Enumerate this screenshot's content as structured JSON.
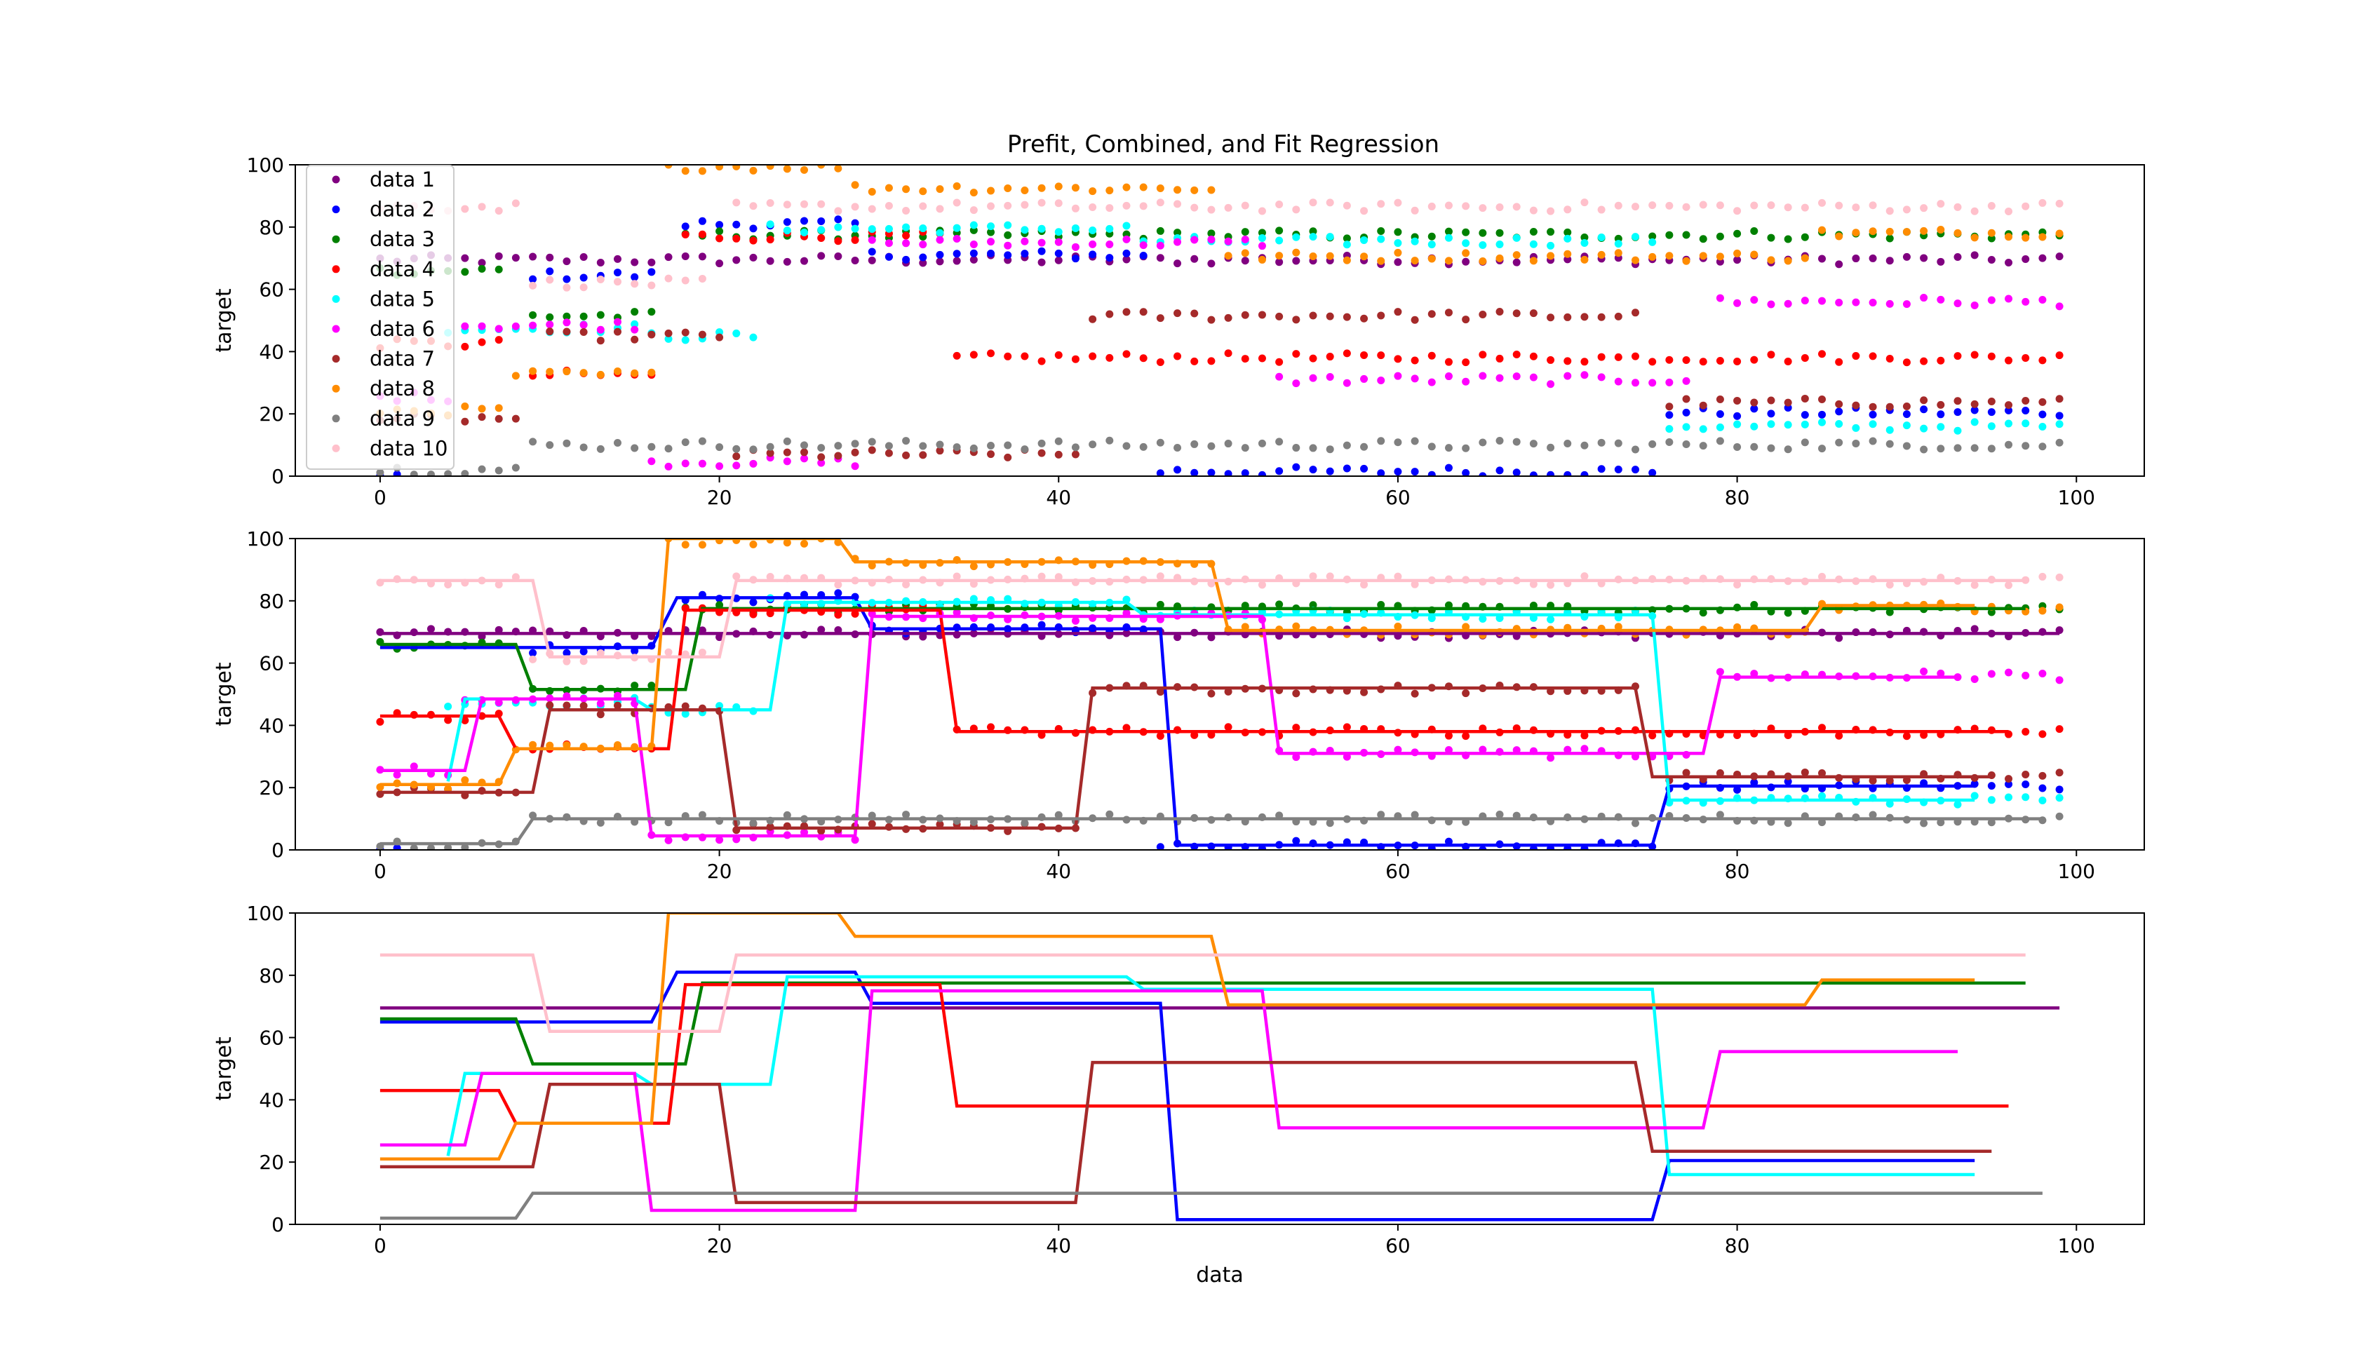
{
  "figure": {
    "title": "Prefit, Combined, and Fit Regression"
  },
  "colors": {
    "data 1": "#800080",
    "data 2": "#0000ff",
    "data 3": "#008000",
    "data 4": "#ff0000",
    "data 5": "#00ffff",
    "data 6": "#ff00ff",
    "data 7": "#a52a2a",
    "data 8": "#ff8c00",
    "data 9": "#808080",
    "data 10": "#ffc0cb"
  },
  "chart_data": [
    {
      "type": "scatter",
      "panel": "prefit",
      "title": "Prefit, Combined, and Fit Regression",
      "xlabel": "",
      "ylabel": "target",
      "xlim": [
        -5,
        104
      ],
      "ylim": [
        0,
        100
      ],
      "xticks": [
        0,
        20,
        40,
        60,
        80,
        100
      ],
      "yticks": [
        0,
        20,
        40,
        60,
        80,
        100
      ],
      "legend": {
        "position": "top-left",
        "entries": [
          "data 1",
          "data 2",
          "data 3",
          "data 4",
          "data 5",
          "data 6",
          "data 7",
          "data 8",
          "data 9",
          "data 10"
        ]
      },
      "series": [
        {
          "name": "data 1",
          "segments": [
            [
              0,
              99,
              69.5
            ]
          ]
        },
        {
          "name": "data 2",
          "segments": [
            [
              0,
              1,
              0
            ],
            [
              9,
              16,
              64.5
            ],
            [
              18,
              28,
              81
            ],
            [
              29,
              45,
              71
            ],
            [
              46,
              75,
              1.5
            ],
            [
              76,
              99,
              20.5
            ]
          ]
        },
        {
          "name": "data 3",
          "segments": [
            [
              0,
              7,
              66
            ],
            [
              9,
              16,
              51.5
            ],
            [
              18,
              99,
              77.5
            ]
          ]
        },
        {
          "name": "data 4",
          "segments": [
            [
              0,
              7,
              42.5
            ],
            [
              9,
              16,
              32.5
            ],
            [
              18,
              33,
              77
            ],
            [
              34,
              99,
              38
            ]
          ]
        },
        {
          "name": "data 5",
          "segments": [
            [
              4,
              15,
              47.5
            ],
            [
              16,
              22,
              45
            ],
            [
              23,
              44,
              79.5
            ],
            [
              45,
              75,
              75.5
            ],
            [
              76,
              99,
              16
            ]
          ]
        },
        {
          "name": "data 6",
          "segments": [
            [
              0,
              4,
              25.5
            ],
            [
              5,
              15,
              48.5
            ],
            [
              16,
              28,
              4.5
            ],
            [
              29,
              52,
              75
            ],
            [
              53,
              77,
              31
            ],
            [
              79,
              99,
              56
            ]
          ]
        },
        {
          "name": "data 7",
          "segments": [
            [
              0,
              8,
              18.5
            ],
            [
              10,
              20,
              45
            ],
            [
              21,
              41,
              7
            ],
            [
              42,
              74,
              51.5
            ],
            [
              76,
              99,
              23.5
            ]
          ]
        },
        {
          "name": "data 8",
          "segments": [
            [
              0,
              7,
              21
            ],
            [
              8,
              16,
              32.5
            ],
            [
              17,
              27,
              99.5
            ],
            [
              28,
              49,
              92.5
            ],
            [
              50,
              84,
              70.5
            ],
            [
              85,
              99,
              78
            ]
          ]
        },
        {
          "name": "data 9",
          "segments": [
            [
              0,
              8,
              2
            ],
            [
              9,
              99,
              10
            ]
          ]
        },
        {
          "name": "data 10",
          "segments": [
            [
              0,
              8,
              86.5
            ],
            [
              9,
              19,
              62
            ],
            [
              21,
              99,
              86.5
            ]
          ]
        }
      ]
    },
    {
      "type": "scatter",
      "panel": "combined",
      "xlabel": "",
      "ylabel": "target",
      "xlim": [
        -5,
        104
      ],
      "ylim": [
        0,
        100
      ],
      "xticks": [
        0,
        20,
        40,
        60,
        80,
        100
      ],
      "yticks": [
        0,
        20,
        40,
        60,
        80,
        100
      ],
      "note": "same points as prefit panel overlaid with fitted step lines"
    },
    {
      "type": "line",
      "panel": "fit",
      "xlabel": "data",
      "ylabel": "target",
      "xlim": [
        -5,
        104
      ],
      "ylim": [
        0,
        100
      ],
      "xticks": [
        0,
        20,
        40,
        60,
        80,
        100
      ],
      "yticks": [
        0,
        20,
        40,
        60,
        80,
        100
      ],
      "series": [
        {
          "name": "data 1",
          "x": [
            0,
            99
          ],
          "y": [
            69.5,
            69.5
          ]
        },
        {
          "name": "data 2",
          "x": [
            0,
            16,
            17.5,
            28,
            29,
            46,
            47,
            75,
            76,
            94
          ],
          "y": [
            65,
            65,
            81,
            81,
            71,
            71,
            1.5,
            1.5,
            20.5,
            20.5
          ]
        },
        {
          "name": "data 3",
          "x": [
            0,
            8,
            9,
            18,
            19,
            97
          ],
          "y": [
            66,
            66,
            51.5,
            51.5,
            77.5,
            77.5
          ]
        },
        {
          "name": "data 4",
          "x": [
            0,
            7,
            8,
            17,
            18,
            33,
            34,
            96
          ],
          "y": [
            43,
            43,
            32.5,
            32.5,
            77,
            77,
            38,
            38
          ]
        },
        {
          "name": "data 5",
          "x": [
            4,
            5,
            15,
            16,
            23,
            24,
            44,
            45,
            75,
            76,
            94
          ],
          "y": [
            22,
            48.5,
            48.5,
            45,
            45,
            79.5,
            79.5,
            75.5,
            75.5,
            16,
            16
          ]
        },
        {
          "name": "data 6",
          "x": [
            0,
            5,
            6,
            15,
            16,
            28,
            29,
            52,
            53,
            78,
            79,
            93
          ],
          "y": [
            25.5,
            25.5,
            48.5,
            48.5,
            4.5,
            4.5,
            75,
            75,
            31,
            31,
            55.5,
            55.5
          ]
        },
        {
          "name": "data 7",
          "x": [
            0,
            9,
            10,
            20,
            21,
            41,
            42,
            74,
            75,
            95
          ],
          "y": [
            18.5,
            18.5,
            45,
            45,
            7,
            7,
            52,
            52,
            23.5,
            23.5
          ]
        },
        {
          "name": "data 8",
          "x": [
            0,
            7,
            8,
            16,
            17,
            27,
            28,
            49,
            50,
            84,
            85,
            94
          ],
          "y": [
            21,
            21,
            32.5,
            32.5,
            100,
            100,
            92.5,
            92.5,
            70.5,
            70.5,
            78.5,
            78.5
          ]
        },
        {
          "name": "data 9",
          "x": [
            0,
            8,
            9,
            98
          ],
          "y": [
            2,
            2,
            10,
            10
          ]
        },
        {
          "name": "data 10",
          "x": [
            0,
            9,
            10,
            20,
            21,
            97
          ],
          "y": [
            86.5,
            86.5,
            62,
            62,
            86.5,
            86.5
          ]
        }
      ]
    }
  ]
}
